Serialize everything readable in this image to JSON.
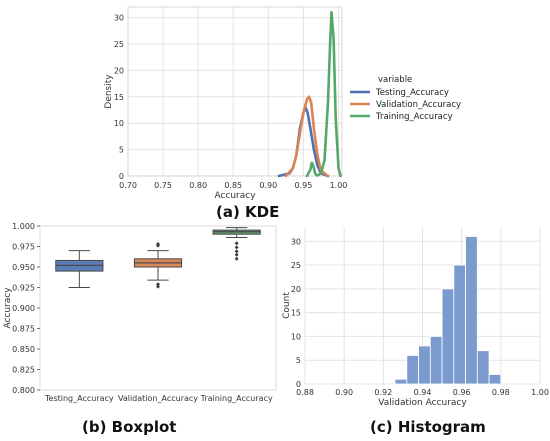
{
  "captions": {
    "kde": "(a) KDE",
    "boxplot": "(b) Boxplot",
    "histogram": "(c) Histogram"
  },
  "colors": {
    "testing": "#4C72B0",
    "validation": "#DD8452",
    "training": "#55A868",
    "grid": "#e4e4e4",
    "hist_bar": "#7b9bcf"
  },
  "chart_data": [
    {
      "type": "line",
      "title": "",
      "xlabel": "Accuracy",
      "ylabel": "Density",
      "xlim": [
        0.7,
        1.005
      ],
      "ylim": [
        0,
        32
      ],
      "xticks": [
        "0.70",
        "0.75",
        "0.80",
        "0.85",
        "0.90",
        "0.95",
        "1.00"
      ],
      "yticks": [
        "0",
        "5",
        "10",
        "15",
        "20",
        "25",
        "30"
      ],
      "grid": true,
      "legend": {
        "title": "variable",
        "placement": "right-outside"
      },
      "series": [
        {
          "name": "Testing_Accuracy",
          "x": [
            0.915,
            0.93,
            0.935,
            0.94,
            0.945,
            0.95,
            0.953,
            0.956,
            0.96,
            0.965,
            0.97,
            0.975,
            0.985
          ],
          "y": [
            0,
            0.5,
            1.5,
            4,
            9,
            12,
            13,
            12,
            9,
            5,
            2,
            0.5,
            0
          ]
        },
        {
          "name": "Validation_Accuracy",
          "x": [
            0.925,
            0.935,
            0.94,
            0.945,
            0.95,
            0.955,
            0.958,
            0.961,
            0.965,
            0.97,
            0.975,
            0.985
          ],
          "y": [
            0,
            1.5,
            4,
            8,
            12,
            14.5,
            15,
            14,
            9,
            4,
            1,
            0
          ]
        },
        {
          "name": "Training_Accuracy",
          "x": [
            0.955,
            0.96,
            0.962,
            0.964,
            0.967,
            0.97,
            0.975,
            0.98,
            0.985,
            0.988,
            0.99,
            0.993,
            0.996,
            1.0,
            1.003
          ],
          "y": [
            0,
            1.2,
            2.5,
            2.0,
            0.4,
            0.1,
            0.5,
            3,
            14,
            25,
            31,
            26,
            11,
            1.5,
            0
          ]
        }
      ]
    },
    {
      "type": "boxplot",
      "title": "",
      "xlabel": "",
      "ylabel": "Accuracy",
      "ylim": [
        0.8,
        1.0
      ],
      "yticks": [
        "0.800",
        "0.825",
        "0.850",
        "0.875",
        "0.900",
        "0.925",
        "0.950",
        "0.975",
        "1.000"
      ],
      "categories": [
        "Testing_Accuracy",
        "Validation_Accuracy",
        "Training_Accuracy"
      ],
      "boxes": [
        {
          "whislo": 0.925,
          "q1": 0.945,
          "med": 0.952,
          "q3": 0.958,
          "whishi": 0.97,
          "fliers": []
        },
        {
          "whislo": 0.934,
          "q1": 0.95,
          "med": 0.955,
          "q3": 0.96,
          "whishi": 0.97,
          "fliers": [
            0.926,
            0.929,
            0.976,
            0.978
          ]
        },
        {
          "whislo": 0.986,
          "q1": 0.99,
          "med": 0.993,
          "q3": 0.995,
          "whishi": 0.998,
          "fliers": [
            0.96,
            0.965,
            0.969,
            0.974,
            0.979
          ]
        }
      ]
    },
    {
      "type": "bar",
      "title": "",
      "xlabel": "Validation Accuracy",
      "ylabel": "Count",
      "xlim": [
        0.88,
        1.0
      ],
      "ylim": [
        0,
        33
      ],
      "xticks": [
        "0.88",
        "0.90",
        "0.92",
        "0.94",
        "0.96",
        "0.98",
        "1.00"
      ],
      "yticks": [
        "0",
        "5",
        "10",
        "15",
        "20",
        "25",
        "30"
      ],
      "grid": true,
      "bins": [
        {
          "x0": 0.926,
          "x1": 0.932,
          "value": 1
        },
        {
          "x0": 0.932,
          "x1": 0.938,
          "value": 6
        },
        {
          "x0": 0.938,
          "x1": 0.944,
          "value": 8
        },
        {
          "x0": 0.944,
          "x1": 0.95,
          "value": 10
        },
        {
          "x0": 0.95,
          "x1": 0.956,
          "value": 20
        },
        {
          "x0": 0.956,
          "x1": 0.962,
          "value": 25
        },
        {
          "x0": 0.962,
          "x1": 0.968,
          "value": 31
        },
        {
          "x0": 0.968,
          "x1": 0.974,
          "value": 7
        },
        {
          "x0": 0.974,
          "x1": 0.98,
          "value": 2
        }
      ]
    }
  ]
}
